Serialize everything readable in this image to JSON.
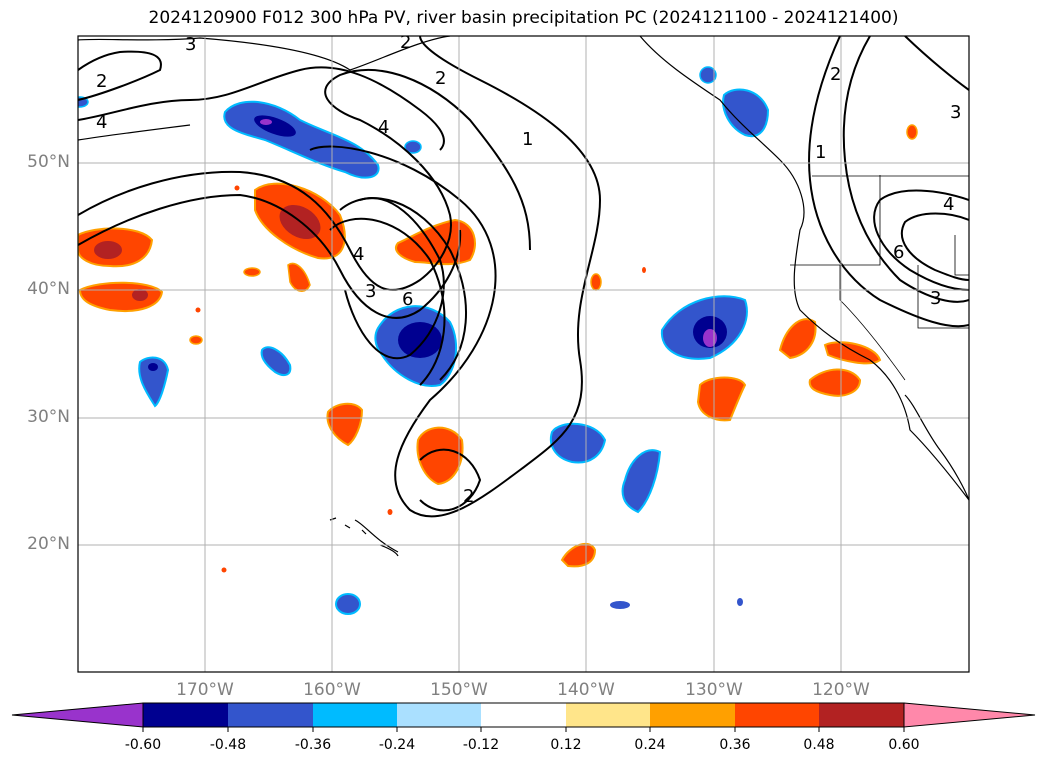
{
  "title": "2024120900 F012 300 hPa PV, river basin precipitation PC (2024121100 - 2024121400)",
  "map": {
    "projection": "PlateCarree",
    "lon_range": [
      -180,
      -110
    ],
    "lat_range": [
      10,
      60
    ],
    "lat_ticks": [
      {
        "value": 50,
        "label": "50°N"
      },
      {
        "value": 40,
        "label": "40°N"
      },
      {
        "value": 30,
        "label": "30°N"
      },
      {
        "value": 20,
        "label": "20°N"
      }
    ],
    "lon_ticks": [
      {
        "value": -170,
        "label": "170°W"
      },
      {
        "value": -160,
        "label": "160°W"
      },
      {
        "value": -150,
        "label": "150°W"
      },
      {
        "value": -140,
        "label": "140°W"
      },
      {
        "value": -130,
        "label": "130°W"
      },
      {
        "value": -120,
        "label": "120°W"
      }
    ],
    "grid": true,
    "contour_labels": [
      "3",
      "2",
      "4",
      "2",
      "2",
      "4",
      "1",
      "2",
      "4",
      "3",
      "1",
      "6",
      "4",
      "3",
      "3",
      "6",
      "2"
    ]
  },
  "colorbar": {
    "levels": [
      "-0.60",
      "-0.48",
      "-0.36",
      "-0.24",
      "-0.12",
      "0.12",
      "0.24",
      "0.36",
      "0.48",
      "0.60"
    ],
    "colors": [
      "#9933cc",
      "#000090",
      "#3355cc",
      "#00bbff",
      "#aae0ff",
      "#ffffff",
      "#ffe58a",
      "#ffa000",
      "#ff4500",
      "#b22222",
      "#ff88aa"
    ],
    "extend": "both"
  },
  "palette": {
    "deep_blue": "#000090",
    "mid_blue": "#3355cc",
    "purple": "#9933cc",
    "orange": "#ff4500",
    "dark_red": "#b22222",
    "light_orange": "#ffa000"
  }
}
